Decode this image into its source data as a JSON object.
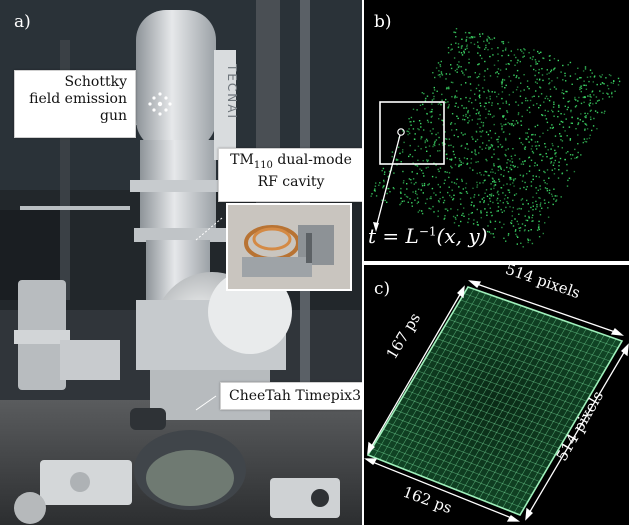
{
  "panel_a": {
    "label": "a)",
    "callout_gun": [
      "Schottky",
      "field emission",
      "gun"
    ],
    "callout_rf": {
      "prefix": "TM",
      "subscript": "110",
      "suffix": " dual-mode",
      "line2": "RF cavity"
    },
    "callout_detector": "CheeTah Timepix3",
    "column_brand": "TECNAI"
  },
  "panel_b": {
    "label": "b)",
    "formula": {
      "t": "t",
      "eq": " = ",
      "L": "L",
      "sup": "−1",
      "args": "(x, y)"
    }
  },
  "panel_c": {
    "label": "c)",
    "edge_top": "514 pixels",
    "edge_right": "514 pixels",
    "edge_left": "167 ps",
    "edge_bottom": "162 ps"
  },
  "colors": {
    "speckle_green": "#3fe06a",
    "grid_green": "#7ee3a2"
  }
}
